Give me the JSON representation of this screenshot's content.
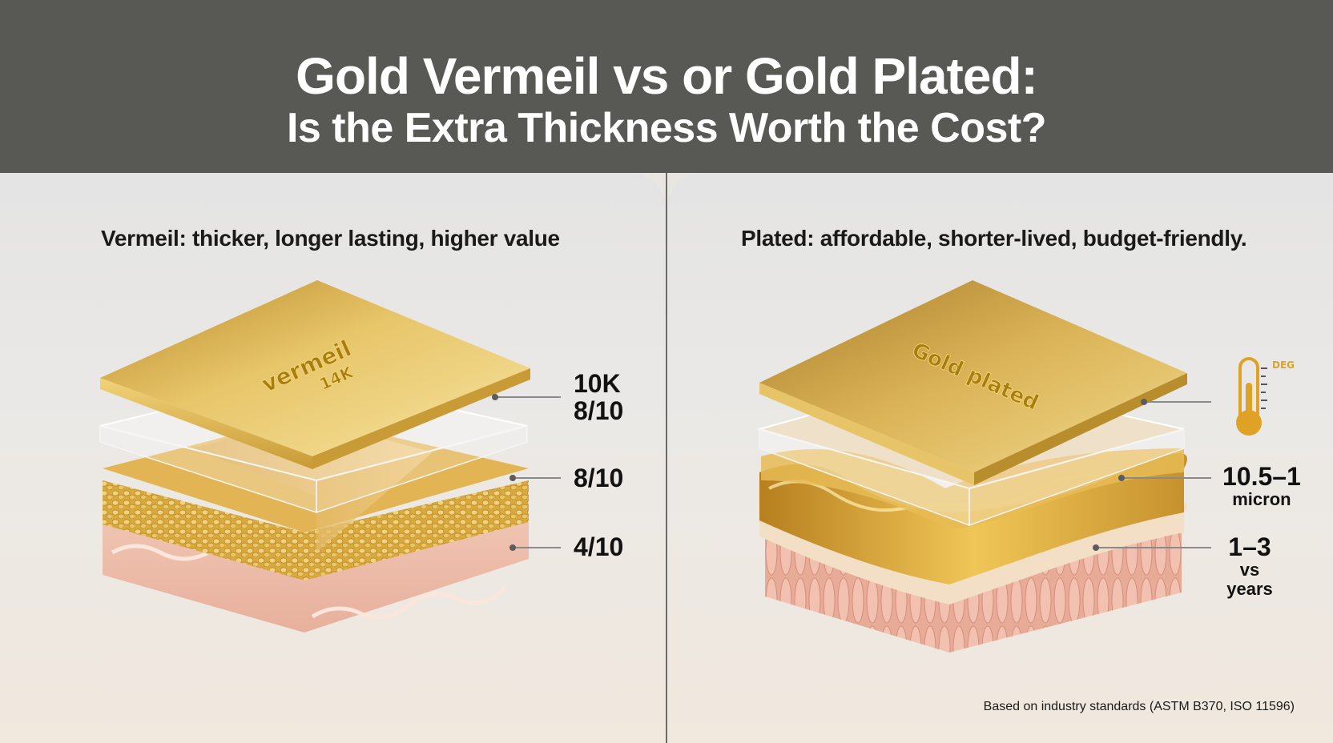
{
  "header": {
    "title_line1": "Gold Vermeil vs or Gold Plated:",
    "title_line2": "Is the Extra Thickness Worth the Cost?"
  },
  "left": {
    "caption": "Vermeil: thicker, longer lasting, higher value",
    "engraving_line1": "vermeil",
    "engraving_line2": "14K",
    "callouts": {
      "top_line1": "10K",
      "top_line2": "8/10",
      "middle": "8/10",
      "bottom": "4/10"
    }
  },
  "right": {
    "caption": "Plated: affordable, shorter-lived, budget-friendly.",
    "engraving": "Gold plated",
    "thermometer_label": "DEG",
    "callouts": {
      "middle_value": "10.5–1",
      "middle_unit": "micron",
      "bottom_value": "1–3",
      "bottom_unit": "vs years"
    }
  },
  "footnote": "Based on industry standards (ASTM B370, ISO 11596)",
  "colors": {
    "header_bg": "#585855",
    "gold": "#d8b04a",
    "base_pink": "#eab8a6"
  },
  "icons": [
    "thermometer-icon"
  ]
}
